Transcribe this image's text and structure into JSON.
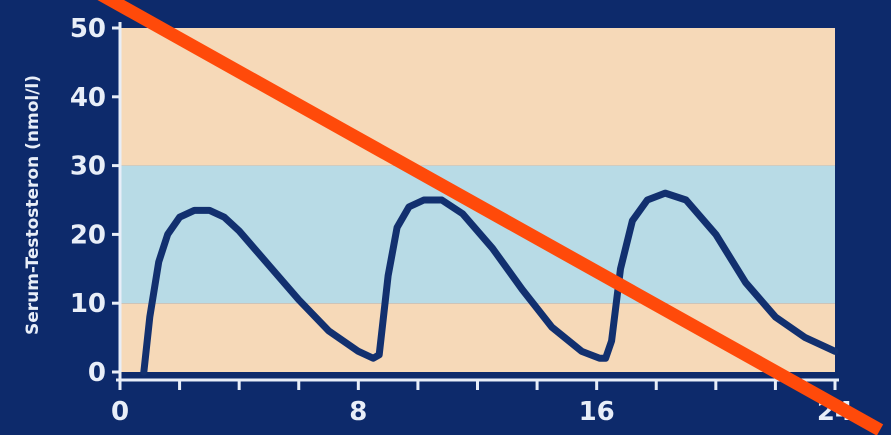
{
  "chart_data": {
    "type": "line",
    "ylabel": "Serum-Testosteron (nmol/l)",
    "xlabel": "",
    "xlim": [
      0,
      24
    ],
    "ylim": [
      0,
      50
    ],
    "x_ticks": [
      "0",
      "8",
      "16",
      "24"
    ],
    "y_ticks": [
      "0",
      "10",
      "20",
      "30",
      "40",
      "50"
    ],
    "bands": [
      {
        "from": 0,
        "to": 10,
        "color": "#f6d9b8"
      },
      {
        "from": 10,
        "to": 30,
        "color": "#b8dbe6"
      },
      {
        "from": 30,
        "to": 50,
        "color": "#f6d9b8"
      }
    ],
    "series": [
      {
        "color": "#12306f",
        "x": [
          0.8,
          1.0,
          1.3,
          1.6,
          2.0,
          2.5,
          3.0,
          3.5,
          4.0,
          5.0,
          6.0,
          7.0,
          8.0,
          8.5,
          8.7,
          9.0,
          9.3,
          9.7,
          10.2,
          10.8,
          11.5,
          12.5,
          13.5,
          14.5,
          15.5,
          16.1,
          16.3,
          16.5,
          16.8,
          17.2,
          17.7,
          18.3,
          19.0,
          20.0,
          21.0,
          22.0,
          23.0,
          24.0
        ],
        "values": [
          0,
          8,
          16,
          20,
          22.5,
          23.5,
          23.5,
          22.5,
          20.5,
          15.5,
          10.5,
          6,
          3,
          2,
          2.5,
          14,
          21,
          24,
          25,
          25,
          23,
          18,
          12,
          6.5,
          3,
          2,
          2,
          4.5,
          15,
          22,
          25,
          26,
          25,
          20,
          13,
          8,
          5,
          3
        ]
      }
    ]
  },
  "overlay": {
    "color": "#ff4a0a"
  }
}
